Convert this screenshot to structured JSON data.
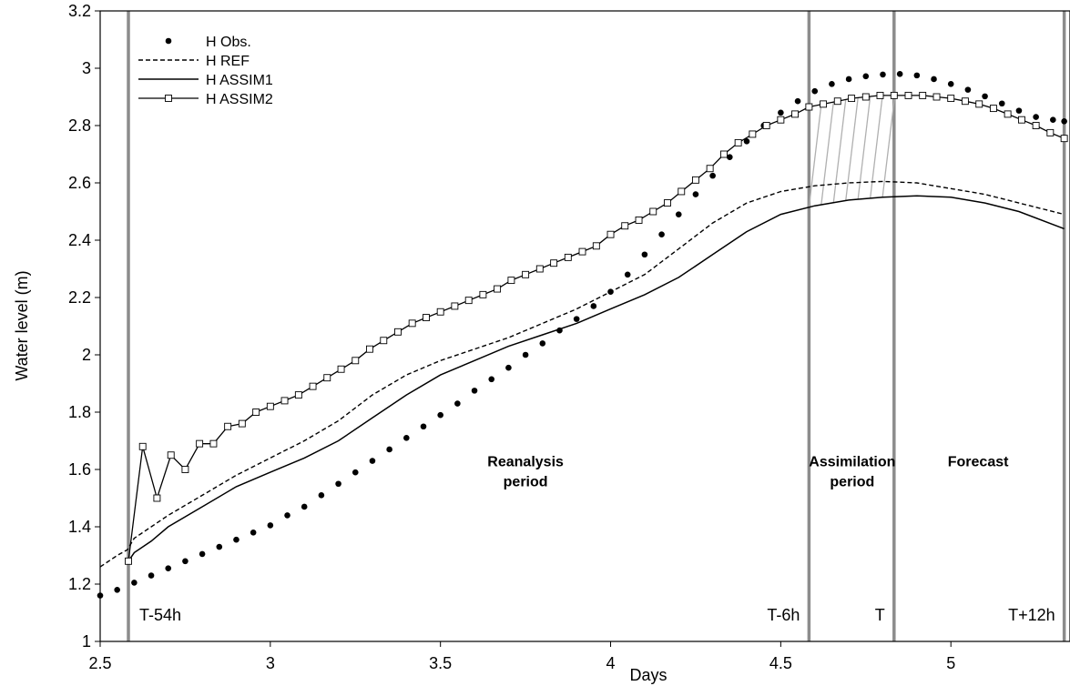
{
  "chart_data": {
    "type": "line",
    "xlabel": "Days",
    "ylabel": "Water level (m)",
    "xlim": [
      2.5,
      5.35
    ],
    "ylim": [
      1,
      3.2
    ],
    "x_ticks": [
      "2.5",
      "3",
      "3.5",
      "4",
      "4.5",
      "5"
    ],
    "y_ticks": [
      "1",
      "1.2",
      "1.4",
      "1.6",
      "1.8",
      "2",
      "2.2",
      "2.4",
      "2.6",
      "2.8",
      "3",
      "3.2"
    ],
    "legend": {
      "position": "top-left",
      "entries": [
        "H Obs.",
        "H REF",
        "H ASSIM1",
        "H ASSIM2"
      ]
    },
    "vertical_lines": [
      {
        "x": 2.583,
        "label": "T-54h"
      },
      {
        "x": 4.583,
        "label": "T-6h"
      },
      {
        "x": 4.833,
        "label": "T"
      },
      {
        "x": 5.333,
        "label": "T+12h"
      }
    ],
    "regions": [
      {
        "x": 3.75,
        "y": 1.58,
        "line1": "Reanalysis",
        "line2": "period"
      },
      {
        "x": 4.71,
        "y": 1.58,
        "line1": "Assimilation",
        "line2": "period"
      },
      {
        "x": 5.08,
        "y": 1.58,
        "line1": "Forecast",
        "line2": ""
      }
    ],
    "series": [
      {
        "name": "H Obs.",
        "style": "dots",
        "x": [
          2.5,
          2.55,
          2.6,
          2.65,
          2.7,
          2.75,
          2.8,
          2.85,
          2.9,
          2.95,
          3.0,
          3.05,
          3.1,
          3.15,
          3.2,
          3.25,
          3.3,
          3.35,
          3.4,
          3.45,
          3.5,
          3.55,
          3.6,
          3.65,
          3.7,
          3.75,
          3.8,
          3.85,
          3.9,
          3.95,
          4.0,
          4.05,
          4.1,
          4.15,
          4.2,
          4.25,
          4.3,
          4.35,
          4.4,
          4.45,
          4.5,
          4.55,
          4.6,
          4.65,
          4.7,
          4.75,
          4.8,
          4.85,
          4.9,
          4.95,
          5.0,
          5.05,
          5.1,
          5.15,
          5.2,
          5.25,
          5.3,
          5.333
        ],
        "values": [
          1.16,
          1.18,
          1.205,
          1.23,
          1.255,
          1.28,
          1.305,
          1.33,
          1.355,
          1.38,
          1.405,
          1.44,
          1.47,
          1.51,
          1.55,
          1.59,
          1.63,
          1.67,
          1.71,
          1.75,
          1.79,
          1.83,
          1.875,
          1.915,
          1.955,
          2.0,
          2.04,
          2.085,
          2.125,
          2.17,
          2.22,
          2.28,
          2.35,
          2.42,
          2.49,
          2.56,
          2.625,
          2.69,
          2.745,
          2.8,
          2.845,
          2.885,
          2.92,
          2.945,
          2.962,
          2.972,
          2.978,
          2.98,
          2.975,
          2.962,
          2.945,
          2.925,
          2.902,
          2.877,
          2.852,
          2.83,
          2.82,
          2.815
        ]
      },
      {
        "name": "H REF",
        "style": "dashed",
        "x": [
          2.5,
          2.55,
          2.58,
          2.6,
          2.65,
          2.7,
          2.8,
          2.9,
          3.0,
          3.1,
          3.2,
          3.3,
          3.4,
          3.5,
          3.6,
          3.7,
          3.8,
          3.9,
          4.0,
          4.1,
          4.2,
          4.3,
          4.4,
          4.5,
          4.6,
          4.7,
          4.8,
          4.9,
          5.0,
          5.1,
          5.2,
          5.333
        ],
        "values": [
          1.26,
          1.3,
          1.32,
          1.36,
          1.4,
          1.44,
          1.51,
          1.58,
          1.64,
          1.7,
          1.77,
          1.86,
          1.93,
          1.98,
          2.02,
          2.06,
          2.11,
          2.16,
          2.22,
          2.28,
          2.37,
          2.46,
          2.53,
          2.57,
          2.59,
          2.6,
          2.605,
          2.6,
          2.58,
          2.56,
          2.53,
          2.49
        ]
      },
      {
        "name": "H ASSIM1",
        "style": "solid",
        "x": [
          2.583,
          2.6,
          2.65,
          2.7,
          2.8,
          2.9,
          3.0,
          3.1,
          3.2,
          3.3,
          3.4,
          3.5,
          3.6,
          3.7,
          3.8,
          3.9,
          4.0,
          4.1,
          4.2,
          4.3,
          4.4,
          4.5,
          4.6,
          4.7,
          4.8,
          4.9,
          5.0,
          5.1,
          5.2,
          5.333
        ],
        "values": [
          1.28,
          1.31,
          1.35,
          1.4,
          1.47,
          1.54,
          1.59,
          1.64,
          1.7,
          1.78,
          1.86,
          1.93,
          1.98,
          2.03,
          2.07,
          2.11,
          2.16,
          2.21,
          2.27,
          2.35,
          2.43,
          2.49,
          2.52,
          2.54,
          2.55,
          2.555,
          2.55,
          2.53,
          2.5,
          2.44
        ]
      },
      {
        "name": "H ASSIM2",
        "style": "solid-squares",
        "x": [
          2.583,
          2.625,
          2.667,
          2.708,
          2.75,
          2.792,
          2.833,
          2.875,
          2.917,
          2.958,
          3.0,
          3.042,
          3.083,
          3.125,
          3.167,
          3.208,
          3.25,
          3.292,
          3.333,
          3.375,
          3.417,
          3.458,
          3.5,
          3.542,
          3.583,
          3.625,
          3.667,
          3.708,
          3.75,
          3.792,
          3.833,
          3.875,
          3.917,
          3.958,
          4.0,
          4.042,
          4.083,
          4.125,
          4.167,
          4.208,
          4.25,
          4.292,
          4.333,
          4.375,
          4.417,
          4.458,
          4.5,
          4.542,
          4.583,
          4.625,
          4.667,
          4.708,
          4.75,
          4.792,
          4.833,
          4.875,
          4.917,
          4.958,
          5.0,
          5.042,
          5.083,
          5.125,
          5.167,
          5.208,
          5.25,
          5.292,
          5.333
        ],
        "values": [
          1.28,
          1.68,
          1.5,
          1.65,
          1.6,
          1.69,
          1.69,
          1.75,
          1.76,
          1.8,
          1.82,
          1.84,
          1.86,
          1.89,
          1.92,
          1.95,
          1.98,
          2.02,
          2.05,
          2.08,
          2.11,
          2.13,
          2.15,
          2.17,
          2.19,
          2.21,
          2.23,
          2.26,
          2.28,
          2.3,
          2.32,
          2.34,
          2.36,
          2.38,
          2.42,
          2.45,
          2.47,
          2.5,
          2.53,
          2.57,
          2.61,
          2.65,
          2.7,
          2.74,
          2.77,
          2.8,
          2.82,
          2.84,
          2.865,
          2.875,
          2.885,
          2.895,
          2.9,
          2.905,
          2.905,
          2.905,
          2.905,
          2.9,
          2.895,
          2.885,
          2.875,
          2.86,
          2.84,
          2.82,
          2.8,
          2.775,
          2.755
        ]
      }
    ]
  }
}
